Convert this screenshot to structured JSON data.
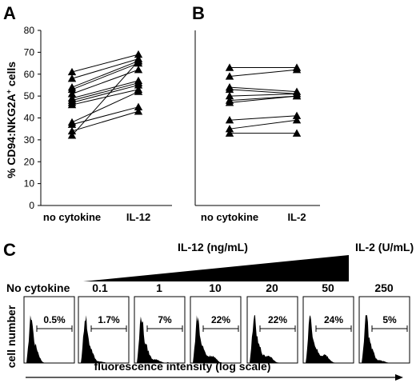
{
  "chart_data": [
    {
      "type": "line",
      "panel": "A",
      "categories": [
        "no cytokine",
        "IL-12"
      ],
      "ylabel": "% CD94:NKG2A",
      "ylabel_sup": "+",
      "ylabel_suffix": " cells",
      "ylim": [
        0,
        80
      ],
      "yticks": [
        0,
        10,
        20,
        30,
        40,
        50,
        60,
        70,
        80
      ],
      "pairs": [
        [
          61,
          69
        ],
        [
          58,
          67
        ],
        [
          54,
          66
        ],
        [
          53,
          65
        ],
        [
          51,
          62
        ],
        [
          49,
          57
        ],
        [
          48,
          56
        ],
        [
          47,
          55
        ],
        [
          46,
          53
        ],
        [
          38,
          52
        ],
        [
          37,
          45
        ],
        [
          34,
          43
        ],
        [
          32,
          66
        ]
      ]
    },
    {
      "type": "line",
      "panel": "B",
      "categories": [
        "no cytokine",
        "IL-2"
      ],
      "ylim": [
        0,
        80
      ],
      "pairs": [
        [
          63,
          63
        ],
        [
          59,
          62
        ],
        [
          54,
          52
        ],
        [
          53,
          51
        ],
        [
          50,
          51
        ],
        [
          48,
          50
        ],
        [
          47,
          50
        ],
        [
          39,
          41
        ],
        [
          35,
          39
        ],
        [
          33,
          33
        ]
      ]
    },
    {
      "type": "histogram",
      "panel": "C",
      "header_left": "IL-12 (ng/mL)",
      "header_right": "IL-2 (U/mL)",
      "ylabel": "cell number",
      "xlabel": "fluorescence intensity (log scale)",
      "histograms": [
        {
          "label": "No cytokine",
          "percent": "0.5%",
          "tail": 0.0
        },
        {
          "label": "0.1",
          "percent": "1.7%",
          "tail": 0.05
        },
        {
          "label": "1",
          "percent": "7%",
          "tail": 0.12
        },
        {
          "label": "10",
          "percent": "22%",
          "tail": 0.25
        },
        {
          "label": "20",
          "percent": "22%",
          "tail": 0.25
        },
        {
          "label": "50",
          "percent": "24%",
          "tail": 0.28
        },
        {
          "label": "250",
          "percent": "5%",
          "tail": 0.08
        }
      ]
    }
  ]
}
